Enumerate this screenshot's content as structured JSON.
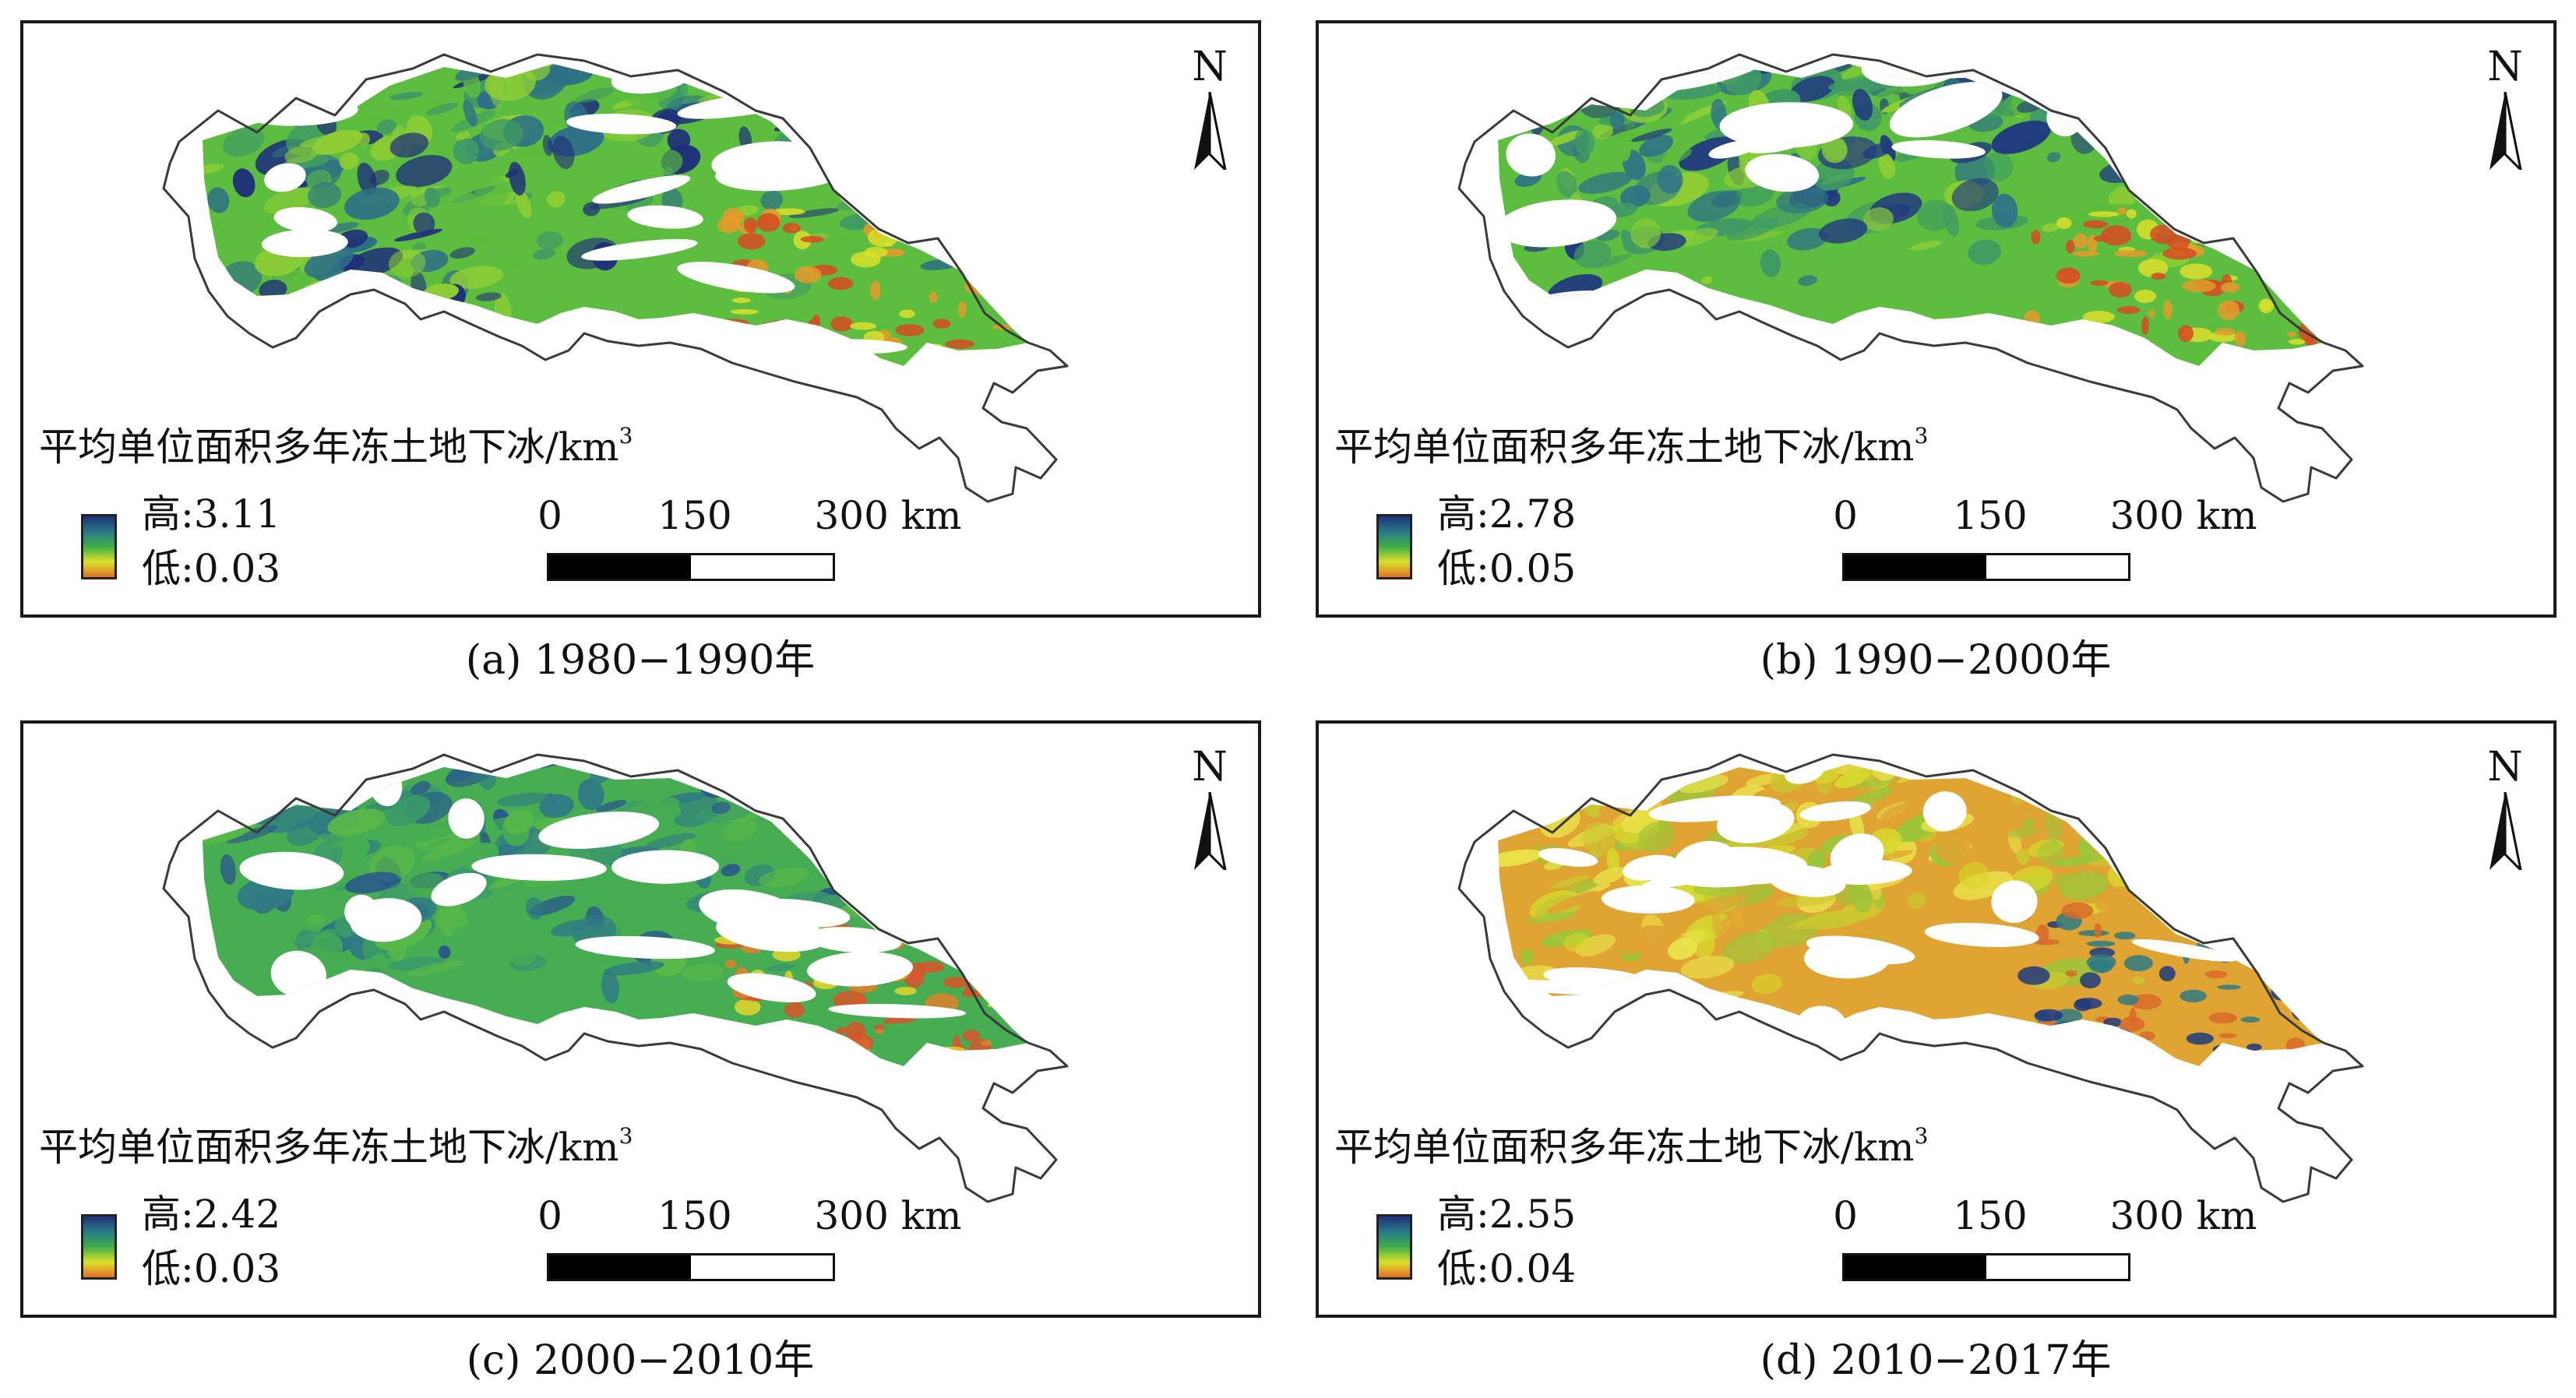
{
  "panels": [
    {
      "id": "a",
      "legend_title": "平均单位面积多年冻土地下冰/km",
      "legend_sup": "3",
      "high_label": "高:3.11",
      "low_label": "低:0.03",
      "caption": "(a) 1980−1990年",
      "palette": [
        "#1e2f7a",
        "#2d6f87",
        "#3f9a64",
        "#5cbd3e",
        "#8fce34"
      ],
      "accent": [
        "#d9df2a",
        "#e59a2c",
        "#d74a22"
      ]
    },
    {
      "id": "b",
      "legend_title": "平均单位面积多年冻土地下冰/km",
      "legend_sup": "3",
      "high_label": "高:2.78",
      "low_label": "低:0.05",
      "caption": "(b) 1990−2000年",
      "palette": [
        "#213a80",
        "#2d7288",
        "#3f9a64",
        "#5cbd3e",
        "#8fce34"
      ],
      "accent": [
        "#d9df2a",
        "#e59a2c",
        "#d74a22"
      ]
    },
    {
      "id": "c",
      "legend_title": "平均单位面积多年冻土地下冰/km",
      "legend_sup": "3",
      "high_label": "高:2.42",
      "low_label": "低:0.03",
      "caption": "(c) 2000−2010年",
      "palette": [
        "#2a5a8a",
        "#2f7b84",
        "#3a9a6a",
        "#46ad52",
        "#58b848"
      ],
      "accent": [
        "#e3d52b",
        "#e0802b",
        "#d9532a"
      ]
    },
    {
      "id": "d",
      "legend_title": "平均单位面积多年冻土地下冰/km",
      "legend_sup": "3",
      "high_label": "高:2.55",
      "low_label": "低:0.04",
      "caption": "(d) 2010−2017年",
      "palette": [
        "#d6d82c",
        "#e9e24a",
        "#c9c730",
        "#e0a433",
        "#9cc63a"
      ],
      "accent": [
        "#2f7b84",
        "#d86a2a",
        "#1f3a7e"
      ]
    }
  ],
  "common": {
    "north_label": "N",
    "scale_0": "0",
    "scale_150": "150",
    "scale_300": "300 km"
  }
}
